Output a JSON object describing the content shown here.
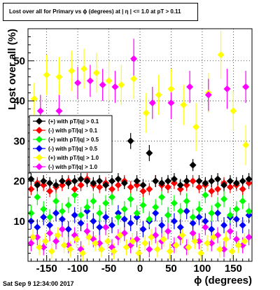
{
  "title": "Lost over all for Primary vs ϕ (degrees) at | η | <= 1.0 at pT > 0.11",
  "datestamp": "Sat Sep  9 12:34:00 2017",
  "chart_data": {
    "type": "scatter",
    "xlabel": "ϕ (degrees)",
    "ylabel": "Lost over all (%)",
    "xlim": [
      -180,
      180
    ],
    "ylim": [
      0,
      58
    ],
    "x_ticks": [
      -150,
      -100,
      -50,
      0,
      50,
      100,
      150
    ],
    "y_ticks": [
      10,
      20,
      30,
      40,
      50
    ],
    "grid": true,
    "legend_position": "middle-left",
    "series": [
      {
        "name": "(+) with pT/|q| > 0.1",
        "color": "#000000",
        "x": [
          -175,
          -165,
          -155,
          -145,
          -135,
          -125,
          -115,
          -105,
          -95,
          -85,
          -75,
          -65,
          -55,
          -45,
          -35,
          -25,
          -15,
          -5,
          5,
          15,
          25,
          35,
          45,
          55,
          65,
          75,
          85,
          95,
          105,
          115,
          125,
          135,
          145,
          155,
          165,
          175
        ],
        "y": [
          20.5,
          19.0,
          20.0,
          19.5,
          19.0,
          20.0,
          19.5,
          20.0,
          20.5,
          20.0,
          19.5,
          20.0,
          19.0,
          20.0,
          20.5,
          19.5,
          30.0,
          20.0,
          19.0,
          27.0,
          20.0,
          19.5,
          20.0,
          20.5,
          19.0,
          20.0,
          24.0,
          20.0,
          19.5,
          20.0,
          20.5,
          19.0,
          20.0,
          19.5,
          20.0,
          20.5
        ],
        "err": [
          1.5,
          1.5,
          1.5,
          1.5,
          1.5,
          1.5,
          1.5,
          1.5,
          1.5,
          1.5,
          1.5,
          1.5,
          1.5,
          1.5,
          1.5,
          1.5,
          2.0,
          1.5,
          1.5,
          2.0,
          1.5,
          1.5,
          1.5,
          1.5,
          1.5,
          1.5,
          1.5,
          1.5,
          1.5,
          1.5,
          1.5,
          1.5,
          1.5,
          1.5,
          1.5,
          1.5
        ]
      },
      {
        "name": "(-) with pT/|q| > 0.1",
        "color": "#ff0000",
        "x": [
          -175,
          -165,
          -155,
          -145,
          -135,
          -125,
          -115,
          -105,
          -95,
          -85,
          -75,
          -65,
          -55,
          -45,
          -35,
          -25,
          -15,
          -5,
          5,
          15,
          25,
          35,
          45,
          55,
          65,
          75,
          85,
          95,
          105,
          115,
          125,
          135,
          145,
          155,
          165,
          175
        ],
        "y": [
          18.0,
          19.5,
          19.0,
          17.5,
          18.5,
          19.0,
          20.0,
          18.0,
          19.0,
          20.5,
          19.0,
          18.5,
          19.5,
          18.0,
          19.0,
          20.0,
          18.5,
          19.0,
          17.5,
          18.0,
          20.0,
          19.0,
          18.5,
          19.5,
          18.0,
          19.0,
          20.0,
          18.5,
          19.0,
          17.5,
          18.0,
          19.5,
          18.5,
          19.0,
          18.0,
          19.5
        ],
        "err": [
          1.5,
          1.5,
          1.5,
          1.5,
          1.5,
          1.5,
          1.5,
          1.5,
          1.5,
          1.5,
          1.5,
          1.5,
          1.5,
          1.5,
          1.5,
          1.5,
          1.5,
          1.5,
          1.5,
          1.5,
          1.5,
          1.5,
          1.5,
          1.5,
          1.5,
          1.5,
          1.5,
          1.5,
          1.5,
          1.5,
          1.5,
          1.5,
          1.5,
          1.5,
          1.5,
          1.5
        ]
      },
      {
        "name": "(+) with pT/|q| > 0.5",
        "color": "#00ff00",
        "x": [
          -175,
          -165,
          -155,
          -145,
          -135,
          -125,
          -115,
          -105,
          -95,
          -85,
          -75,
          -65,
          -55,
          -45,
          -35,
          -25,
          -15,
          -5,
          5,
          15,
          25,
          35,
          45,
          55,
          65,
          75,
          85,
          95,
          105,
          115,
          125,
          135,
          145,
          155,
          165,
          175
        ],
        "y": [
          12.0,
          16.0,
          13.0,
          11.0,
          15.0,
          12.5,
          14.0,
          16.5,
          11.5,
          13.5,
          15.0,
          12.0,
          14.5,
          16.0,
          11.0,
          13.0,
          15.5,
          12.0,
          14.0,
          10.5,
          13.5,
          16.0,
          11.5,
          14.5,
          12.5,
          15.0,
          11.0,
          13.0,
          16.5,
          12.0,
          14.0,
          15.5,
          11.5,
          13.0,
          15.0,
          12.5
        ],
        "err": [
          2.0,
          2.0,
          2.0,
          2.0,
          2.0,
          2.0,
          2.0,
          2.0,
          2.0,
          2.0,
          2.0,
          2.0,
          2.0,
          2.0,
          2.0,
          2.0,
          2.0,
          2.0,
          2.0,
          2.0,
          2.0,
          2.0,
          2.0,
          2.0,
          2.0,
          2.0,
          2.0,
          2.0,
          2.0,
          2.0,
          2.0,
          2.0,
          2.0,
          2.0,
          2.0,
          2.0
        ]
      },
      {
        "name": "(-) with pT/|q| > 0.5",
        "color": "#0000ff",
        "x": [
          -175,
          -165,
          -155,
          -145,
          -135,
          -125,
          -115,
          -105,
          -95,
          -85,
          -75,
          -65,
          -55,
          -45,
          -35,
          -25,
          -15,
          -5,
          5,
          15,
          25,
          35,
          45,
          55,
          65,
          75,
          85,
          95,
          105,
          115,
          125,
          135,
          145,
          155,
          165,
          175
        ],
        "y": [
          10.0,
          8.5,
          11.0,
          9.0,
          12.0,
          10.5,
          8.0,
          11.5,
          9.5,
          12.5,
          10.0,
          8.5,
          11.0,
          9.0,
          12.0,
          10.5,
          9.5,
          11.0,
          8.0,
          10.0,
          12.0,
          9.0,
          11.5,
          10.0,
          8.5,
          12.5,
          9.5,
          11.0,
          10.0,
          8.0,
          12.0,
          9.0,
          11.0,
          10.5,
          9.0,
          11.5
        ],
        "err": [
          2.0,
          2.0,
          2.0,
          2.0,
          2.0,
          2.0,
          2.0,
          2.0,
          2.0,
          2.0,
          2.0,
          2.0,
          2.0,
          2.0,
          2.0,
          2.0,
          2.0,
          2.0,
          2.0,
          2.0,
          2.0,
          2.0,
          2.0,
          2.0,
          2.0,
          2.0,
          2.0,
          2.0,
          2.0,
          2.0,
          2.0,
          2.0,
          2.0,
          2.0,
          2.0,
          2.0
        ]
      },
      {
        "name": "(+) with pT/|q| > 1.0",
        "color": "#ffff00",
        "x": [
          -170,
          -150,
          -130,
          -110,
          -90,
          -70,
          -50,
          -30,
          -10,
          10,
          30,
          50,
          70,
          90,
          110,
          130,
          150,
          170
        ],
        "y": [
          40.5,
          46.5,
          46.0,
          47.5,
          48.0,
          47.0,
          45.0,
          44.0,
          45.5,
          37.0,
          41.5,
          43.0,
          39.0,
          33.5,
          42.0,
          51.5,
          37.5,
          29.0
        ],
        "err": [
          4.0,
          5.0,
          5.0,
          5.0,
          5.0,
          5.0,
          5.0,
          5.0,
          5.0,
          5.0,
          5.0,
          5.0,
          5.0,
          6.0,
          5.0,
          6.0,
          5.0,
          5.0
        ]
      },
      {
        "name": "(-) with pT/|q| > 1.0",
        "color": "#ff00ff",
        "x": [
          -160,
          -130,
          -100,
          -80,
          -60,
          -40,
          -10,
          20,
          50,
          80,
          110,
          140,
          170
        ],
        "y": [
          37.5,
          37.5,
          44.5,
          45.0,
          44.0,
          43.5,
          50.5,
          39.5,
          39.5,
          43.5,
          41.5,
          43.0,
          43.5
        ],
        "err": [
          4.0,
          4.0,
          4.0,
          4.0,
          4.0,
          4.0,
          5.0,
          4.0,
          4.0,
          4.0,
          4.0,
          5.0,
          4.0
        ]
      },
      {
        "name": "",
        "color": "#ff00ff",
        "x": [
          -175,
          -165,
          -155,
          -145,
          -135,
          -125,
          -115,
          -105,
          -95,
          -85,
          -75,
          -65,
          -55,
          -45,
          -35,
          -25,
          -15,
          -5,
          5,
          15,
          25,
          35,
          45,
          55,
          65,
          75,
          85,
          95,
          105,
          115,
          125,
          135,
          145,
          155,
          165,
          175
        ],
        "y": [
          4.5,
          6.0,
          3.5,
          7.0,
          5.0,
          8.0,
          4.0,
          6.5,
          3.0,
          7.5,
          5.5,
          4.5,
          8.5,
          3.5,
          6.0,
          7.0,
          4.0,
          5.5,
          8.0,
          3.0,
          6.5,
          5.0,
          7.5,
          4.0,
          6.0,
          3.5,
          7.0,
          5.0,
          8.5,
          4.5,
          6.5,
          3.0,
          7.5,
          5.5,
          4.0,
          6.0
        ],
        "err": [
          2.0,
          2.0,
          2.0,
          2.0,
          2.0,
          2.0,
          2.0,
          2.0,
          2.0,
          2.0,
          2.0,
          2.0,
          2.0,
          2.0,
          2.0,
          2.0,
          2.0,
          2.0,
          2.0,
          2.0,
          2.0,
          2.0,
          2.0,
          2.0,
          2.0,
          2.0,
          2.0,
          2.0,
          2.0,
          2.0,
          2.0,
          2.0,
          2.0,
          2.0,
          2.0,
          2.0
        ]
      },
      {
        "name": "",
        "color": "#ffff00",
        "x": [
          -172,
          -162,
          -152,
          -142,
          -132,
          -122,
          -112,
          -102,
          -92,
          -82,
          -72,
          -62,
          -52,
          -42,
          -32,
          -22,
          -12,
          -2,
          8,
          18,
          28,
          38,
          48,
          58,
          68,
          78,
          88,
          98,
          108,
          118,
          128,
          138,
          148,
          158,
          168
        ],
        "y": [
          6.0,
          3.5,
          5.0,
          2.5,
          6.5,
          4.0,
          3.0,
          5.5,
          2.0,
          6.0,
          4.5,
          3.0,
          5.0,
          2.5,
          6.5,
          3.5,
          5.0,
          2.0,
          4.5,
          6.0,
          3.0,
          5.5,
          2.5,
          4.0,
          6.5,
          3.5,
          5.0,
          2.0,
          4.5,
          6.0,
          3.0,
          5.5,
          2.5,
          4.0,
          5.0
        ],
        "err": [
          2.0,
          2.0,
          2.0,
          2.0,
          2.0,
          2.0,
          2.0,
          2.0,
          2.0,
          2.0,
          2.0,
          2.0,
          2.0,
          2.0,
          2.0,
          2.0,
          2.0,
          2.0,
          2.0,
          2.0,
          2.0,
          2.0,
          2.0,
          2.0,
          2.0,
          2.0,
          2.0,
          2.0,
          2.0,
          2.0,
          2.0,
          2.0,
          2.0,
          2.0,
          2.0
        ]
      }
    ]
  }
}
